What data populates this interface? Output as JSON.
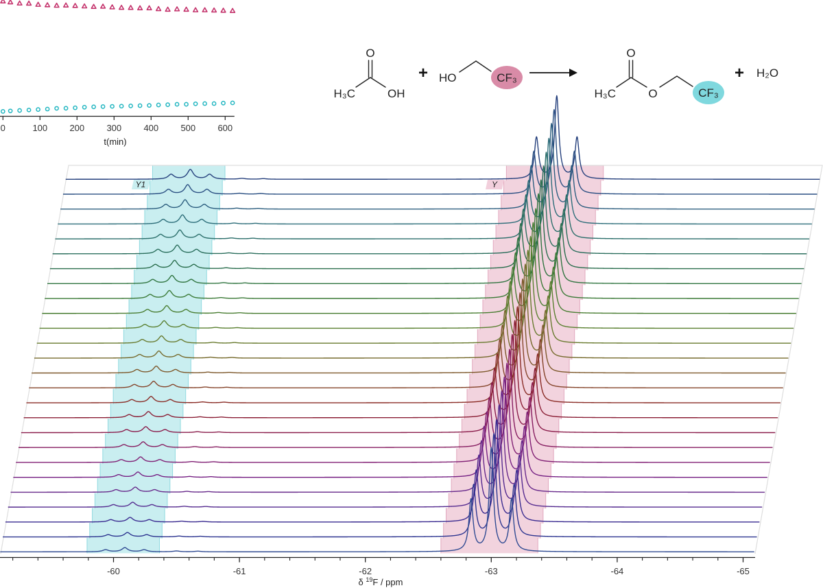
{
  "reaction_scheme": {
    "reactant1": {
      "carbonyl_O": "O",
      "methyl": "H₃C",
      "hydroxyl": "OH"
    },
    "plus_1": "+",
    "reactant2": {
      "hydroxyl": "HO",
      "cf3": "CF₃",
      "cf3_highlight": "#d98ba7"
    },
    "product1": {
      "carbonyl_O": "O",
      "methyl": "H₃C",
      "ester_O": "O",
      "cf3": "CF₃",
      "cf3_highlight": "#7fd8de"
    },
    "plus_2": "+",
    "product2": "H₂O"
  },
  "chart_data": [
    {
      "type": "scatter",
      "title": "",
      "xlabel": "t(min)",
      "ylabel": "",
      "xlim": [
        0,
        625
      ],
      "ylim": [
        0,
        100
      ],
      "x_ticks": [
        0,
        100,
        200,
        300,
        400,
        500,
        600
      ],
      "x_tick_labels": [
        "0",
        "100",
        "200",
        "300",
        "400",
        "500",
        "600"
      ],
      "x": [
        0,
        20,
        45,
        70,
        95,
        120,
        145,
        170,
        195,
        220,
        245,
        270,
        295,
        320,
        345,
        370,
        395,
        420,
        445,
        470,
        495,
        520,
        545,
        570,
        595,
        620
      ],
      "series": [
        {
          "name": "Y",
          "marker": "triangle-open",
          "color": "#c4336c",
          "values": [
            99.0,
            98.2,
            97.2,
            97.1,
            96.1,
            95.7,
            95.3,
            95.5,
            95.1,
            94.7,
            94.3,
            94.5,
            93.9,
            93.5,
            93.4,
            93.1,
            93.1,
            92.4,
            91.9,
            92.2,
            91.9,
            91.4,
            91.4,
            91.2,
            91.0,
            90.8
          ]
        },
        {
          "name": "Y1",
          "marker": "circle-open",
          "color": "#22b6c1",
          "values": [
            4.5,
            4.9,
            5.3,
            5.7,
            6.1,
            6.5,
            7.1,
            7.2,
            7.6,
            8.1,
            8.4,
            8.6,
            8.8,
            9.0,
            9.2,
            9.4,
            9.6,
            10.0,
            10.2,
            10.6,
            10.6,
            11.0,
            11.2,
            11.2,
            11.6,
            11.8
          ]
        }
      ],
      "legend": "none"
    },
    {
      "type": "line",
      "subtype": "stacked-waterfall",
      "title": "",
      "xlabel_parts": {
        "prefix": "δ ",
        "sup": "19",
        "suffix": "F / ppm"
      },
      "ylabel": "",
      "xlim": [
        -59.1,
        -65.09
      ],
      "x_ticks": [
        -60,
        -61,
        -62,
        -63,
        -64,
        -65
      ],
      "x_tick_labels": [
        "-60",
        "-61",
        "-62",
        "-63",
        "-64",
        "-65"
      ],
      "minor_tick_step": 0.2,
      "spectra_count": 26,
      "times_min": [
        0,
        20,
        45,
        70,
        95,
        120,
        145,
        170,
        195,
        220,
        245,
        270,
        295,
        320,
        345,
        370,
        395,
        420,
        445,
        470,
        495,
        520,
        545,
        570,
        595,
        620
      ],
      "peaks": [
        {
          "label": "Y",
          "center_ppm": -63.0,
          "multiplicity": "triplet",
          "line_ratios": [
            1,
            2,
            1
          ],
          "J_ppm": 0.161,
          "hwhm_ppm": 0.02,
          "intensity": [
            1.0,
            0.99,
            0.98,
            0.98,
            0.97,
            0.96,
            0.95,
            0.94,
            0.94,
            0.93,
            0.92,
            0.91,
            0.9,
            0.9,
            0.89,
            0.88,
            0.87,
            0.86,
            0.86,
            0.85,
            0.84,
            0.83,
            0.82,
            0.82,
            0.81,
            0.8
          ]
        },
        {
          "label": "Y1",
          "center_ppm": -60.09,
          "multiplicity": "triplet",
          "line_ratios": [
            1,
            2,
            1
          ],
          "J_ppm": 0.153,
          "hwhm_ppm": 0.028,
          "intensity": [
            0.04,
            0.042,
            0.044,
            0.046,
            0.048,
            0.05,
            0.052,
            0.054,
            0.056,
            0.058,
            0.06,
            0.063,
            0.065,
            0.067,
            0.069,
            0.071,
            0.073,
            0.075,
            0.077,
            0.079,
            0.082,
            0.084,
            0.086,
            0.088,
            0.09,
            0.093
          ]
        }
      ],
      "minor_peaks": [
        {
          "center_ppm": -60.5,
          "hwhm_ppm": 0.03,
          "intensity": 0.008
        },
        {
          "center_ppm": -60.67,
          "hwhm_ppm": 0.03,
          "intensity": 0.006
        }
      ],
      "regions": [
        {
          "label": "Y1",
          "from_ppm": -59.79,
          "to_ppm": -60.365,
          "color": "#c9eef0",
          "edge_color": "#8fd9df"
        },
        {
          "label": "Y",
          "from_ppm": -62.6,
          "to_ppm": -63.37,
          "color": "#f2d3de",
          "edge_color": "#e2a8be"
        }
      ],
      "trace_colors": [
        "#2f4a92",
        "#2d3590",
        "#3a2b90",
        "#542a8f",
        "#682a8b",
        "#762184",
        "#801f74",
        "#861d60",
        "#8a1c4b",
        "#8b1f36",
        "#8a2c26",
        "#85442a",
        "#7e592c",
        "#766a2c",
        "#687a2e",
        "#5a8030",
        "#4a7e33",
        "#3b7a37",
        "#2f743f",
        "#2a6e4d",
        "#2a6e5c",
        "#2a6e6a",
        "#2b6c78",
        "#2c5e7f",
        "#2a4f82",
        "#243f7c"
      ]
    }
  ]
}
